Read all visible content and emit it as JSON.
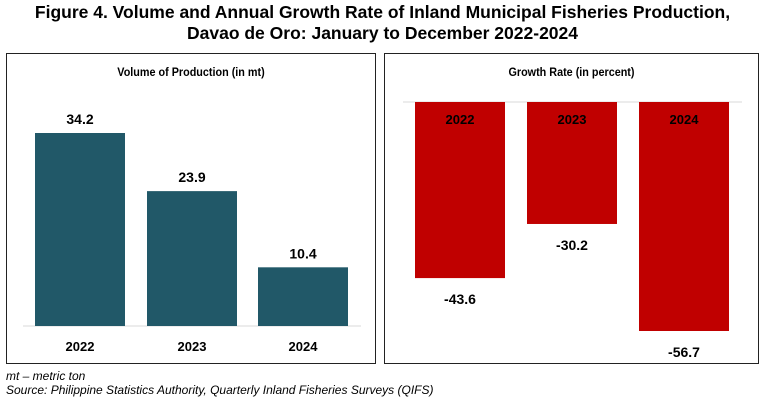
{
  "figure": {
    "title_line1": "Figure 4. Volume and Annual Growth Rate of Inland Municipal Fisheries Production,",
    "title_line2": "Davao de Oro: January to December 2022-2024"
  },
  "colors": {
    "volume_bar": "#215868",
    "growth_bar": "#C00000",
    "axis": "#d9d9d9",
    "growth_label_on_bar": "#000000"
  },
  "chart_data": [
    {
      "type": "bar",
      "title": "Volume of Production (in mt)",
      "categories": [
        "2022",
        "2023",
        "2024"
      ],
      "values": [
        34.2,
        23.9,
        10.4
      ],
      "value_labels": [
        "34.2",
        "23.9",
        "10.4"
      ],
      "ylim": [
        0,
        40
      ],
      "grid": false,
      "legend": "none"
    },
    {
      "type": "bar",
      "title": "Growth Rate (in percent)",
      "categories": [
        "2022",
        "2023",
        "2024"
      ],
      "values": [
        -43.6,
        -30.2,
        -56.7
      ],
      "value_labels": [
        "-43.6",
        "-30.2",
        "-56.7"
      ],
      "ylim": [
        -60,
        0
      ],
      "grid": false,
      "legend": "none"
    }
  ],
  "footnotes": {
    "unit_note": "mt – metric ton",
    "source": "Source: Philippine Statistics Authority, Quarterly Inland Fisheries Surveys (QIFS)"
  }
}
